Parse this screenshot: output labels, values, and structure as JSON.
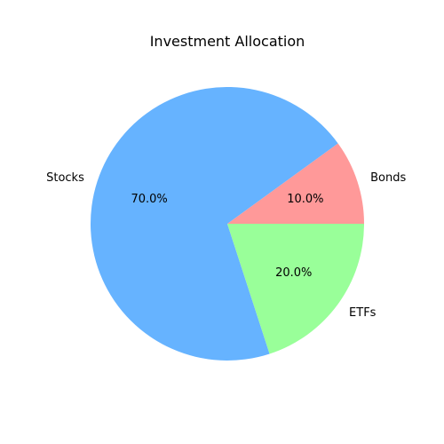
{
  "chart_data": {
    "type": "pie",
    "title": "Investment Allocation",
    "categories": [
      "Bonds",
      "Stocks",
      "ETFs"
    ],
    "values": [
      10.0,
      70.0,
      20.0
    ],
    "labels": [
      "10.0%",
      "70.0%",
      "20.0%"
    ],
    "colors": [
      "#ff9999",
      "#66b3ff",
      "#99ff99"
    ],
    "start_angle_deg": 0,
    "direction": "counterclockwise"
  }
}
